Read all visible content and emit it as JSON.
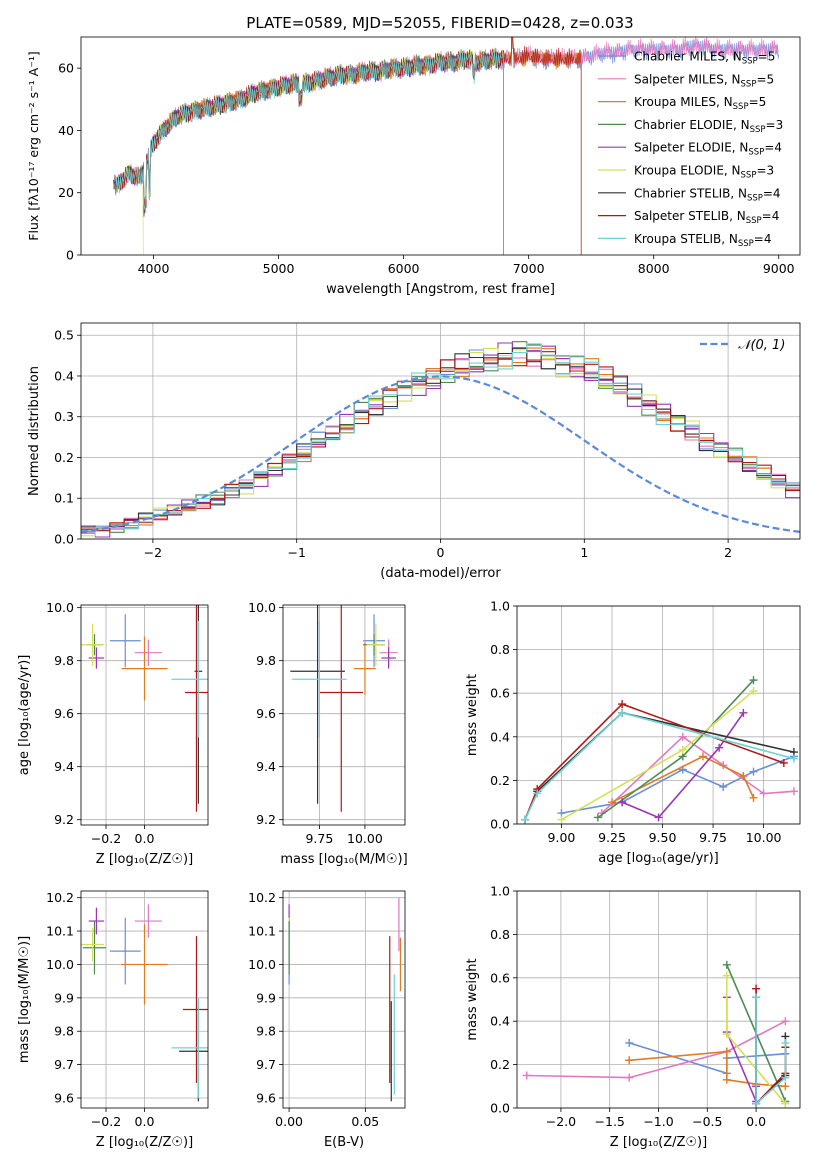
{
  "chart_data": [
    {
      "id": "spectrum",
      "type": "line",
      "title": "PLATE=0589, MJD=52055, FIBERID=0428, z=0.033",
      "xlabel": "wavelength [Angstrom, rest frame]",
      "ylabel": "Flux [fλ10⁻¹⁷ erg cm⁻² s⁻¹ A⁻¹]",
      "xlim": [
        3420,
        9170
      ],
      "ylim": [
        0,
        70
      ],
      "xticks": [
        4000,
        5000,
        6000,
        7000,
        8000,
        9000
      ],
      "yticks": [
        0,
        20,
        40,
        60
      ],
      "legend_position": "upper-right",
      "spectrum_shape": {
        "x": [
          3680,
          3700,
          3800,
          3900,
          4000,
          4100,
          4200,
          4300,
          4400,
          4500,
          4600,
          4700,
          4800,
          4900,
          5000,
          5100,
          5200,
          5300,
          5400,
          5500,
          5600,
          5700,
          5800,
          5900,
          6000,
          6100,
          6200,
          6300,
          6400,
          6500,
          6600,
          6700,
          6800,
          6900,
          7000,
          7100,
          7200,
          7300,
          7400,
          7500,
          7600,
          7700,
          7800,
          7900,
          8000,
          8100,
          8200,
          8300,
          8400,
          8500,
          8600,
          8700,
          8800,
          8900,
          9000
        ],
        "y": [
          24,
          22,
          26,
          25,
          36,
          41,
          45,
          46,
          47,
          48,
          49,
          50,
          52,
          53,
          54,
          55,
          55,
          56,
          57,
          58,
          58,
          59,
          59,
          60,
          60,
          61,
          61,
          62,
          62,
          63,
          62,
          63,
          63,
          63,
          64,
          63,
          63,
          63,
          63,
          64,
          65,
          65,
          66,
          66,
          66,
          66,
          66,
          67,
          67,
          66,
          66,
          66,
          66,
          66,
          66
        ]
      },
      "series": [
        {
          "name": "Chabrier MILES, N",
          "sub": "SSP",
          "suffix": "=5",
          "color": "#6a8fd8"
        },
        {
          "name": "Salpeter MILES, N",
          "sub": "SSP",
          "suffix": "=5",
          "color": "#e377c2"
        },
        {
          "name": "Kroupa MILES, N",
          "sub": "SSP",
          "suffix": "=5",
          "color": "#e07b24",
          "cut_at": 7420
        },
        {
          "name": "Chabrier ELODIE, N",
          "sub": "SSP",
          "suffix": "=3",
          "color": "#4f8a55",
          "cut_at": 6800
        },
        {
          "name": "Salpeter ELODIE, N",
          "sub": "SSP",
          "suffix": "=4",
          "color": "#9b36b6",
          "cut_at": 6800
        },
        {
          "name": "Kroupa ELODIE, N",
          "sub": "SSP",
          "suffix": "=3",
          "color": "#d4e157",
          "cut_at": 6800
        },
        {
          "name": "Chabrier STELIB, N",
          "sub": "SSP",
          "suffix": "=4",
          "color": "#333333",
          "cut_at": 6800
        },
        {
          "name": "Salpeter STELIB, N",
          "sub": "SSP",
          "suffix": "=4",
          "color": "#b01818",
          "cut_at": 7420
        },
        {
          "name": "Kroupa STELIB, N",
          "sub": "SSP",
          "suffix": "=4",
          "color": "#6fd3d3",
          "cut_at": 6800
        }
      ]
    },
    {
      "id": "residuals",
      "type": "histogram",
      "xlabel": "(data-model)/error",
      "ylabel": "Normed distribution",
      "xlim": [
        -2.5,
        2.5
      ],
      "ylim": [
        0,
        0.53
      ],
      "xticks": [
        -2,
        -1,
        0,
        1,
        2
      ],
      "yticks": [
        0.0,
        0.1,
        0.2,
        0.3,
        0.4,
        0.5
      ],
      "legend": "𝒩(0, 1)",
      "gauss_color": "#5b8ad6",
      "bin_width": 0.1,
      "base": [
        0.02,
        0.02,
        0.03,
        0.04,
        0.05,
        0.06,
        0.07,
        0.08,
        0.09,
        0.1,
        0.12,
        0.13,
        0.15,
        0.17,
        0.19,
        0.21,
        0.24,
        0.26,
        0.28,
        0.31,
        0.33,
        0.35,
        0.37,
        0.38,
        0.39,
        0.41,
        0.42,
        0.43,
        0.44,
        0.45,
        0.46,
        0.46,
        0.45,
        0.43,
        0.42,
        0.41,
        0.39,
        0.37,
        0.35,
        0.33,
        0.31,
        0.29,
        0.27,
        0.24,
        0.22,
        0.2,
        0.18,
        0.16,
        0.14,
        0.12
      ],
      "colors": [
        "#6a8fd8",
        "#e377c2",
        "#e07b24",
        "#4f8a55",
        "#9b36b6",
        "#d4e157",
        "#333333",
        "#b01818",
        "#6fd3d3"
      ]
    },
    {
      "id": "age-vs-z",
      "type": "errorbar",
      "xlabel": "Z [log₁₀(Z/Z☉)]",
      "ylabel": "age  [log₁₀(age/yr)]",
      "xlim": [
        -0.33,
        0.33
      ],
      "ylim": [
        9.18,
        10.01
      ],
      "xticks": [
        -0.2,
        0.0
      ],
      "yticks": [
        9.2,
        9.4,
        9.6,
        9.8,
        10.0
      ],
      "points": [
        {
          "x": -0.1,
          "y": 9.875,
          "xerr": 0.08,
          "yerr": 0.1,
          "color": "#6a8fd8"
        },
        {
          "x": 0.02,
          "y": 9.83,
          "xerr": 0.07,
          "yerr": 0.05,
          "color": "#e377c2"
        },
        {
          "x": 0.0,
          "y": 9.77,
          "xerr": 0.12,
          "yerr": 0.12,
          "color": "#e07b24"
        },
        {
          "x": -0.26,
          "y": 9.86,
          "xerr": 0.04,
          "yerr": 0.04,
          "color": "#4f8a55"
        },
        {
          "x": -0.25,
          "y": 9.81,
          "xerr": 0.04,
          "yerr": 0.04,
          "color": "#9b36b6"
        },
        {
          "x": -0.27,
          "y": 9.86,
          "xerr": 0.06,
          "yerr": 0.08,
          "color": "#d4e157"
        },
        {
          "x": 0.28,
          "y": 9.76,
          "xerr": 0.02,
          "yerr": 0.5,
          "color": "#333333"
        },
        {
          "x": 0.27,
          "y": 9.68,
          "xerr": 0.06,
          "yerr": 0.45,
          "color": "#b01818"
        },
        {
          "x": 0.28,
          "y": 9.73,
          "xerr": 0.14,
          "yerr": 0.22,
          "color": "#6fd3d3"
        }
      ]
    },
    {
      "id": "age-vs-mass",
      "type": "errorbar",
      "xlabel": "mass [log₁₀(M/M☉)]",
      "ylabel": "",
      "xlim": [
        9.55,
        10.22
      ],
      "ylim": [
        9.18,
        10.01
      ],
      "xticks": [
        9.75,
        10.0
      ],
      "yticks": [
        9.2,
        9.4,
        9.6,
        9.8,
        10.0
      ],
      "points": [
        {
          "x": 10.05,
          "y": 9.875,
          "xerr": 0.06,
          "yerr": 0.1,
          "color": "#6a8fd8"
        },
        {
          "x": 10.13,
          "y": 9.83,
          "xerr": 0.05,
          "yerr": 0.05,
          "color": "#e377c2"
        },
        {
          "x": 10.0,
          "y": 9.77,
          "xerr": 0.06,
          "yerr": 0.1,
          "color": "#e07b24"
        },
        {
          "x": 10.05,
          "y": 9.86,
          "xerr": 0.06,
          "yerr": 0.04,
          "color": "#4f8a55"
        },
        {
          "x": 10.13,
          "y": 9.81,
          "xerr": 0.04,
          "yerr": 0.04,
          "color": "#9b36b6"
        },
        {
          "x": 10.06,
          "y": 9.86,
          "xerr": 0.05,
          "yerr": 0.08,
          "color": "#d4e157"
        },
        {
          "x": 9.74,
          "y": 9.76,
          "xerr": 0.15,
          "yerr": 0.5,
          "color": "#333333"
        },
        {
          "x": 9.87,
          "y": 9.68,
          "xerr": 0.12,
          "yerr": 0.45,
          "color": "#b01818"
        },
        {
          "x": 9.75,
          "y": 9.73,
          "xerr": 0.15,
          "yerr": 0.22,
          "color": "#6fd3d3"
        }
      ]
    },
    {
      "id": "weight-vs-age",
      "type": "line",
      "xlabel": "age  [log₁₀(age/yr)]",
      "ylabel": "mass weight",
      "xlim": [
        8.78,
        10.18
      ],
      "ylim": [
        0,
        1.0
      ],
      "xticks": [
        9.0,
        9.25,
        9.5,
        9.75,
        10.0
      ],
      "yticks": [
        0.0,
        0.2,
        0.4,
        0.6,
        0.8,
        1.0
      ],
      "series": [
        {
          "color": "#6a8fd8",
          "x": [
            9.0,
            9.3,
            9.6,
            9.8,
            9.95,
            10.15
          ],
          "y": [
            0.05,
            0.1,
            0.25,
            0.17,
            0.24,
            0.31
          ]
        },
        {
          "color": "#e377c2",
          "x": [
            9.2,
            9.6,
            9.8,
            10.0,
            10.15
          ],
          "y": [
            0.05,
            0.4,
            0.27,
            0.14,
            0.15
          ]
        },
        {
          "color": "#e07b24",
          "x": [
            9.25,
            9.7,
            9.9,
            9.95
          ],
          "y": [
            0.1,
            0.31,
            0.22,
            0.12
          ]
        },
        {
          "color": "#4f8a55",
          "x": [
            9.18,
            9.6,
            9.95
          ],
          "y": [
            0.03,
            0.31,
            0.66
          ]
        },
        {
          "color": "#9b36b6",
          "x": [
            9.3,
            9.48,
            9.78,
            9.9
          ],
          "y": [
            0.1,
            0.03,
            0.35,
            0.51
          ]
        },
        {
          "color": "#d4e157",
          "x": [
            9.0,
            9.6,
            9.95
          ],
          "y": [
            0.02,
            0.34,
            0.61
          ]
        },
        {
          "color": "#333333",
          "x": [
            8.82,
            8.88,
            9.3,
            10.15
          ],
          "y": [
            0.02,
            0.15,
            0.51,
            0.33
          ]
        },
        {
          "color": "#b01818",
          "x": [
            8.82,
            8.88,
            9.3,
            10.1
          ],
          "y": [
            0.02,
            0.16,
            0.55,
            0.28
          ]
        },
        {
          "color": "#6fd3d3",
          "x": [
            8.82,
            8.88,
            9.3,
            10.15
          ],
          "y": [
            0.02,
            0.14,
            0.51,
            0.3
          ]
        }
      ]
    },
    {
      "id": "mass-vs-z",
      "type": "errorbar",
      "xlabel": "Z [log₁₀(Z/Z☉)]",
      "ylabel": "mass [log₁₀(M/M☉)]",
      "xlim": [
        -0.33,
        0.33
      ],
      "ylim": [
        9.57,
        10.22
      ],
      "xticks": [
        -0.2,
        0.0
      ],
      "yticks": [
        9.6,
        9.7,
        9.8,
        9.9,
        10.0,
        10.1,
        10.2
      ],
      "points": [
        {
          "x": -0.1,
          "y": 10.04,
          "xerr": 0.08,
          "yerr": 0.1,
          "color": "#6a8fd8"
        },
        {
          "x": 0.02,
          "y": 10.13,
          "xerr": 0.07,
          "yerr": 0.05,
          "color": "#e377c2"
        },
        {
          "x": 0.0,
          "y": 10.0,
          "xerr": 0.12,
          "yerr": 0.12,
          "color": "#e07b24"
        },
        {
          "x": -0.26,
          "y": 10.05,
          "xerr": 0.06,
          "yerr": 0.08,
          "color": "#4f8a55"
        },
        {
          "x": -0.25,
          "y": 10.13,
          "xerr": 0.04,
          "yerr": 0.04,
          "color": "#9b36b6"
        },
        {
          "x": -0.27,
          "y": 10.06,
          "xerr": 0.06,
          "yerr": 0.05,
          "color": "#d4e157"
        },
        {
          "x": 0.28,
          "y": 9.74,
          "xerr": 0.1,
          "yerr": 0.15,
          "color": "#333333"
        },
        {
          "x": 0.27,
          "y": 9.865,
          "xerr": 0.07,
          "yerr": 0.22,
          "color": "#b01818"
        },
        {
          "x": 0.28,
          "y": 9.75,
          "xerr": 0.14,
          "yerr": 0.15,
          "color": "#6fd3d3"
        }
      ]
    },
    {
      "id": "mass-vs-ebv",
      "type": "errorbar",
      "xlabel": "E(B-V)",
      "ylabel": "",
      "xlim": [
        -0.004,
        0.076
      ],
      "ylim": [
        9.57,
        10.22
      ],
      "xticks": [
        0.0,
        0.05
      ],
      "yticks": [
        9.6,
        9.7,
        9.8,
        9.9,
        10.0,
        10.1,
        10.2
      ],
      "points": [
        {
          "x": 0.0,
          "y": 10.04,
          "xerr": 0,
          "yerr": 0.1,
          "color": "#6a8fd8"
        },
        {
          "x": 0.0,
          "y": 10.13,
          "xerr": 0,
          "yerr": 0.05,
          "color": "#9b36b6"
        },
        {
          "x": 0.0,
          "y": 10.06,
          "xerr": 0,
          "yerr": 0.08,
          "color": "#d4e157"
        },
        {
          "x": 0.0,
          "y": 10.05,
          "xerr": 0,
          "yerr": 0.08,
          "color": "#4f8a55"
        },
        {
          "x": 0.066,
          "y": 9.865,
          "xerr": 0,
          "yerr": 0.22,
          "color": "#b01818"
        },
        {
          "x": 0.067,
          "y": 9.74,
          "xerr": 0,
          "yerr": 0.15,
          "color": "#333333"
        },
        {
          "x": 0.069,
          "y": 9.79,
          "xerr": 0,
          "yerr": 0.18,
          "color": "#6fd3d3"
        },
        {
          "x": 0.073,
          "y": 10.0,
          "xerr": 0,
          "yerr": 0.08,
          "color": "#e07b24"
        },
        {
          "x": 0.072,
          "y": 10.12,
          "xerr": 0,
          "yerr": 0.08,
          "color": "#e377c2"
        }
      ]
    },
    {
      "id": "weight-vs-z",
      "type": "line",
      "xlabel": "Z [log₁₀(Z/Z☉)]",
      "ylabel": "mass weight",
      "xlim": [
        -2.45,
        0.45
      ],
      "ylim": [
        0,
        1.0
      ],
      "xticks": [
        -2.0,
        -1.5,
        -1.0,
        -0.5,
        0.0
      ],
      "yticks": [
        0.0,
        0.2,
        0.4,
        0.6,
        0.8,
        1.0
      ],
      "series": [
        {
          "color": "#6a8fd8",
          "x": [
            -1.3,
            -0.3,
            -0.3,
            0.3
          ],
          "y": [
            0.3,
            0.16,
            0.23,
            0.25
          ]
        },
        {
          "color": "#e377c2",
          "x": [
            -2.35,
            -1.3,
            -0.3,
            0.3
          ],
          "y": [
            0.15,
            0.14,
            0.26,
            0.4
          ]
        },
        {
          "color": "#e07b24",
          "x": [
            -1.3,
            -0.3,
            -0.3,
            0.0,
            0.3
          ],
          "y": [
            0.22,
            0.26,
            0.13,
            0.11,
            0.1
          ]
        },
        {
          "color": "#4f8a55",
          "x": [
            -0.3,
            0.3
          ],
          "y": [
            0.66,
            0.03
          ]
        },
        {
          "color": "#9b36b6",
          "x": [
            -0.3,
            -0.3,
            0.0,
            0.0
          ],
          "y": [
            0.51,
            0.35,
            0.03,
            0.1
          ]
        },
        {
          "color": "#d4e157",
          "x": [
            -0.3,
            -0.3,
            0.3
          ],
          "y": [
            0.61,
            0.34,
            0.02
          ]
        },
        {
          "color": "#333333",
          "x": [
            0.0,
            0.0,
            0.3,
            0.3
          ],
          "y": [
            0.51,
            0.02,
            0.15,
            0.33
          ]
        },
        {
          "color": "#b01818",
          "x": [
            0.0,
            0.0,
            0.3,
            0.3
          ],
          "y": [
            0.55,
            0.02,
            0.16,
            0.28
          ]
        },
        {
          "color": "#6fd3d3",
          "x": [
            0.0,
            0.0,
            0.3,
            0.3
          ],
          "y": [
            0.51,
            0.02,
            0.14,
            0.3
          ]
        }
      ]
    }
  ]
}
